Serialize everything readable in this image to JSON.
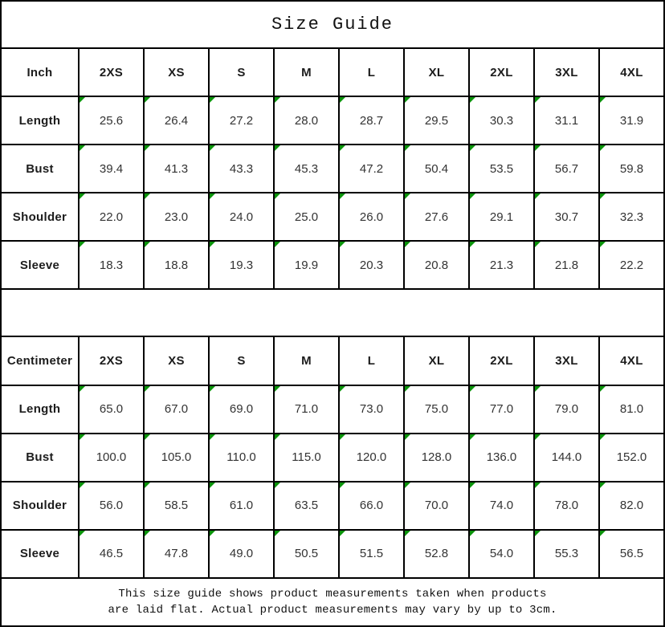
{
  "title": "Size Guide",
  "colors": {
    "border": "#000000",
    "corner_triangle": "#0b940b",
    "background": "#ffffff"
  },
  "chart_data": [
    {
      "type": "table",
      "unit": "Inch",
      "header": [
        "Inch",
        "2XS",
        "XS",
        "S",
        "M",
        "L",
        "XL",
        "2XL",
        "3XL",
        "4XL"
      ],
      "rows": [
        {
          "label": "Length",
          "values": [
            "25.6",
            "26.4",
            "27.2",
            "28.0",
            "28.7",
            "29.5",
            "30.3",
            "31.1",
            "31.9"
          ]
        },
        {
          "label": "Bust",
          "values": [
            "39.4",
            "41.3",
            "43.3",
            "45.3",
            "47.2",
            "50.4",
            "53.5",
            "56.7",
            "59.8"
          ]
        },
        {
          "label": "Shoulder",
          "values": [
            "22.0",
            "23.0",
            "24.0",
            "25.0",
            "26.0",
            "27.6",
            "29.1",
            "30.7",
            "32.3"
          ]
        },
        {
          "label": "Sleeve",
          "values": [
            "18.3",
            "18.8",
            "19.3",
            "19.9",
            "20.3",
            "20.8",
            "21.3",
            "21.8",
            "22.2"
          ]
        }
      ]
    },
    {
      "type": "table",
      "unit": "Centimeter",
      "header": [
        "Centimeter",
        "2XS",
        "XS",
        "S",
        "M",
        "L",
        "XL",
        "2XL",
        "3XL",
        "4XL"
      ],
      "rows": [
        {
          "label": "Length",
          "values": [
            "65.0",
            "67.0",
            "69.0",
            "71.0",
            "73.0",
            "75.0",
            "77.0",
            "79.0",
            "81.0"
          ]
        },
        {
          "label": "Bust",
          "values": [
            "100.0",
            "105.0",
            "110.0",
            "115.0",
            "120.0",
            "128.0",
            "136.0",
            "144.0",
            "152.0"
          ]
        },
        {
          "label": "Shoulder",
          "values": [
            "56.0",
            "58.5",
            "61.0",
            "63.5",
            "66.0",
            "70.0",
            "74.0",
            "78.0",
            "82.0"
          ]
        },
        {
          "label": "Sleeve",
          "values": [
            "46.5",
            "47.8",
            "49.0",
            "50.5",
            "51.5",
            "52.8",
            "54.0",
            "55.3",
            "56.5"
          ]
        }
      ]
    }
  ],
  "footer": {
    "line1": "This size guide shows product measurements taken when products",
    "line2": "are laid flat. Actual product measurements may vary by up to 3cm."
  }
}
